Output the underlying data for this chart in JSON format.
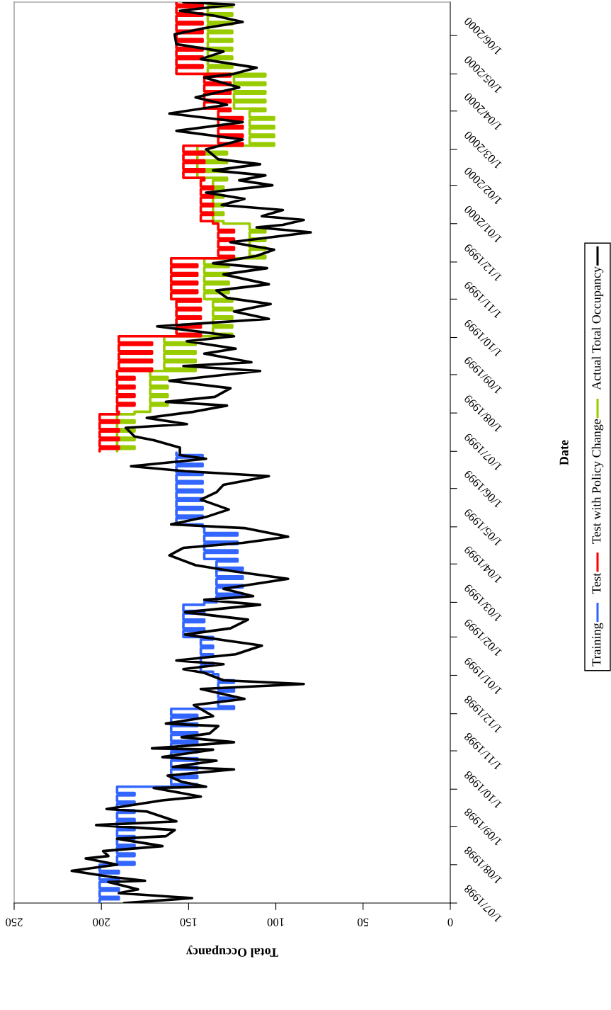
{
  "chart_data": {
    "type": "line",
    "orientation": "horizontal",
    "xlabel": "Total Occupancy",
    "ylabel": "Date",
    "ylim": [
      "1998-07-01",
      "2000-06-28"
    ],
    "xlim": [
      250,
      0
    ],
    "xticks": [
      250,
      200,
      150,
      100,
      50,
      0
    ],
    "grid": false,
    "legend": "right",
    "yticks": [
      {
        "value": "1998-07-01",
        "label": "1/07/1998"
      },
      {
        "value": "1998-08-01",
        "label": "1/08/1998"
      },
      {
        "value": "1998-09-01",
        "label": "1/09/1998"
      },
      {
        "value": "1998-10-01",
        "label": "1/10/1998"
      },
      {
        "value": "1998-11-01",
        "label": "1/11/1998"
      },
      {
        "value": "1998-12-01",
        "label": "1/12/1998"
      },
      {
        "value": "1999-01-01",
        "label": "1/01/1999"
      },
      {
        "value": "1999-02-01",
        "label": "1/02/1999"
      },
      {
        "value": "1999-03-01",
        "label": "1/03/1999"
      },
      {
        "value": "1999-04-01",
        "label": "1/04/1999"
      },
      {
        "value": "1999-05-01",
        "label": "1/05/1999"
      },
      {
        "value": "1999-06-01",
        "label": "1/06/1999"
      },
      {
        "value": "1999-07-01",
        "label": "1/07/1999"
      },
      {
        "value": "1999-08-01",
        "label": "1/08/1999"
      },
      {
        "value": "1999-09-01",
        "label": "1/09/1999"
      },
      {
        "value": "1999-10-01",
        "label": "1/10/1999"
      },
      {
        "value": "1999-11-01",
        "label": "1/11/1999"
      },
      {
        "value": "1999-12-01",
        "label": "1/12/1999"
      },
      {
        "value": "2000-01-01",
        "label": "1/01/2000"
      },
      {
        "value": "2000-02-01",
        "label": "1/02/2000"
      },
      {
        "value": "2000-03-01",
        "label": "1/03/2000"
      },
      {
        "value": "2000-04-01",
        "label": "1/04/2000"
      },
      {
        "value": "2000-05-01",
        "label": "1/05/2000"
      },
      {
        "value": "2000-06-01",
        "label": "1/06/2000"
      }
    ],
    "series": [
      {
        "name": "Training",
        "color": "#3366ff",
        "type": "step",
        "x": [
          "1998-07-01",
          "1998-07-04",
          "1998-07-06",
          "1998-07-11",
          "1998-07-13",
          "1998-07-18",
          "1998-07-20",
          "1998-07-25",
          "1998-07-27",
          "1998-08-01",
          "1998-08-03",
          "1998-08-08",
          "1998-08-10",
          "1998-08-15",
          "1998-08-17",
          "1998-08-22",
          "1998-08-24",
          "1998-08-29",
          "1998-08-31",
          "1998-09-05",
          "1998-09-07",
          "1998-09-12",
          "1998-09-14",
          "1998-09-19",
          "1998-09-21",
          "1998-09-26",
          "1998-09-28",
          "1998-10-03",
          "1998-10-05",
          "1998-10-10",
          "1998-10-12",
          "1998-10-17",
          "1998-10-19",
          "1998-10-24",
          "1998-10-26",
          "1998-10-31",
          "1998-11-02",
          "1998-11-07",
          "1998-11-09",
          "1998-11-14",
          "1998-11-16",
          "1998-11-21",
          "1998-11-23",
          "1998-11-28",
          "1998-11-30",
          "1998-12-05",
          "1998-12-07",
          "1998-12-12",
          "1998-12-14",
          "1998-12-19",
          "1998-12-21",
          "1998-12-26",
          "1998-12-28",
          "1999-01-02",
          "1999-01-04",
          "1999-01-09",
          "1999-01-11",
          "1999-01-16",
          "1999-01-18",
          "1999-01-23",
          "1999-01-25",
          "1999-01-30",
          "1999-02-01",
          "1999-02-06",
          "1999-02-08",
          "1999-02-13",
          "1999-02-15",
          "1999-02-20",
          "1999-02-22",
          "1999-02-27",
          "1999-03-01",
          "1999-03-06",
          "1999-03-08",
          "1999-03-13",
          "1999-03-15",
          "1999-03-20",
          "1999-03-22",
          "1999-03-27",
          "1999-03-29",
          "1999-04-03",
          "1999-04-05",
          "1999-04-10",
          "1999-04-12",
          "1999-04-17",
          "1999-04-19",
          "1999-04-24",
          "1999-04-26",
          "1999-05-01",
          "1999-05-03",
          "1999-05-08",
          "1999-05-10",
          "1999-05-15",
          "1999-05-17",
          "1999-05-22",
          "1999-05-24",
          "1999-05-29",
          "1999-05-31",
          "1999-06-05",
          "1999-06-07",
          "1999-06-12",
          "1999-06-14",
          "1999-06-19",
          "1999-06-21",
          "1999-06-26",
          "1999-06-28",
          "1999-06-30"
        ],
        "values": [
          201,
          190,
          201,
          190,
          201,
          190,
          201,
          190,
          201,
          181,
          191,
          181,
          191,
          181,
          191,
          181,
          191,
          181,
          191,
          181,
          191,
          181,
          191,
          181,
          191,
          181,
          191,
          145,
          160,
          145,
          160,
          145,
          160,
          145,
          160,
          145,
          160,
          145,
          160,
          145,
          160,
          145,
          160,
          145,
          160,
          124,
          133,
          124,
          133,
          124,
          133,
          124,
          133,
          136,
          143,
          136,
          143,
          136,
          143,
          136,
          143,
          136,
          153,
          141,
          153,
          141,
          153,
          141,
          153,
          141,
          134,
          119,
          134,
          119,
          134,
          119,
          134,
          119,
          134,
          122,
          141,
          122,
          141,
          122,
          141,
          122,
          141,
          142,
          157,
          142,
          157,
          142,
          157,
          142,
          157,
          142,
          157,
          142,
          157,
          142,
          157,
          142,
          157,
          142,
          157,
          157
        ]
      },
      {
        "name": "Test",
        "color": "#ff0000",
        "type": "step",
        "x": [
          "1999-07-01",
          "1999-07-03",
          "1999-07-05",
          "1999-07-10",
          "1999-07-12",
          "1999-07-17",
          "1999-07-19",
          "1999-07-24",
          "1999-07-26",
          "1999-07-31",
          "1999-08-02",
          "1999-08-07",
          "1999-08-09",
          "1999-08-14",
          "1999-08-16",
          "1999-08-21",
          "1999-08-23",
          "1999-08-28",
          "1999-08-30",
          "1999-09-04",
          "1999-09-06",
          "1999-09-11",
          "1999-09-13",
          "1999-09-18",
          "1999-09-20",
          "1999-09-25",
          "1999-09-27",
          "1999-10-02",
          "1999-10-04",
          "1999-10-09",
          "1999-10-11",
          "1999-10-16",
          "1999-10-18",
          "1999-10-23",
          "1999-10-25",
          "1999-10-30",
          "1999-11-01",
          "1999-11-06",
          "1999-11-08",
          "1999-11-13",
          "1999-11-15",
          "1999-11-20",
          "1999-11-22",
          "1999-11-27",
          "1999-11-29",
          "1999-12-04",
          "1999-12-06",
          "1999-12-11",
          "1999-12-13",
          "1999-12-18",
          "1999-12-20",
          "1999-12-25",
          "1999-12-27",
          "2000-01-01",
          "2000-01-03",
          "2000-01-08",
          "2000-01-10",
          "2000-01-15",
          "2000-01-17",
          "2000-01-22",
          "2000-01-24",
          "2000-01-29",
          "2000-01-31",
          "2000-02-05",
          "2000-02-07",
          "2000-02-12",
          "2000-02-14",
          "2000-02-19",
          "2000-02-21",
          "2000-02-26",
          "2000-02-28",
          "2000-03-04",
          "2000-03-06",
          "2000-03-11",
          "2000-03-13",
          "2000-03-18",
          "2000-03-20",
          "2000-03-25",
          "2000-03-27",
          "2000-04-01",
          "2000-04-03",
          "2000-04-08",
          "2000-04-10",
          "2000-04-15",
          "2000-04-17",
          "2000-04-22",
          "2000-04-24",
          "2000-04-29",
          "2000-05-01",
          "2000-05-06",
          "2000-05-08",
          "2000-05-13",
          "2000-05-15",
          "2000-05-20",
          "2000-05-22",
          "2000-05-27",
          "2000-05-29",
          "2000-06-03",
          "2000-06-05",
          "2000-06-10",
          "2000-06-12",
          "2000-06-17",
          "2000-06-19",
          "2000-06-24",
          "2000-06-26",
          "2000-06-28"
        ],
        "values": [
          201,
          190,
          201,
          190,
          201,
          190,
          201,
          190,
          201,
          190,
          191,
          181,
          191,
          181,
          191,
          181,
          191,
          181,
          191,
          171,
          190,
          171,
          190,
          171,
          190,
          171,
          190,
          143,
          157,
          143,
          157,
          143,
          157,
          143,
          157,
          143,
          160,
          145,
          160,
          145,
          160,
          145,
          160,
          145,
          160,
          124,
          133,
          124,
          133,
          124,
          133,
          124,
          133,
          136,
          143,
          136,
          143,
          136,
          143,
          136,
          143,
          136,
          143,
          141,
          153,
          141,
          153,
          141,
          153,
          141,
          153,
          119,
          133,
          119,
          133,
          119,
          133,
          119,
          133,
          126,
          141,
          126,
          141,
          126,
          141,
          126,
          141,
          126,
          157,
          142,
          157,
          142,
          157,
          142,
          157,
          142,
          157,
          142,
          157,
          142,
          157,
          142,
          157,
          142,
          157,
          157
        ]
      },
      {
        "name": "Test with Policy Change",
        "color": "#99cc00",
        "type": "step",
        "x": [
          "1999-07-01",
          "1999-07-03",
          "1999-07-05",
          "1999-07-10",
          "1999-07-12",
          "1999-07-17",
          "1999-07-19",
          "1999-07-24",
          "1999-07-26",
          "1999-07-31",
          "1999-08-02",
          "1999-08-07",
          "1999-08-09",
          "1999-08-14",
          "1999-08-16",
          "1999-08-21",
          "1999-08-23",
          "1999-08-28",
          "1999-08-30",
          "1999-09-04",
          "1999-09-06",
          "1999-09-11",
          "1999-09-13",
          "1999-09-18",
          "1999-09-20",
          "1999-09-25",
          "1999-09-27",
          "1999-10-02",
          "1999-10-04",
          "1999-10-09",
          "1999-10-11",
          "1999-10-16",
          "1999-10-18",
          "1999-10-23",
          "1999-10-25",
          "1999-10-30",
          "1999-11-01",
          "1999-11-06",
          "1999-11-08",
          "1999-11-13",
          "1999-11-15",
          "1999-11-20",
          "1999-11-22",
          "1999-11-27",
          "1999-11-29",
          "1999-12-04",
          "1999-12-06",
          "1999-12-11",
          "1999-12-13",
          "1999-12-18",
          "1999-12-20",
          "1999-12-25",
          "1999-12-27",
          "2000-01-01",
          "2000-01-03",
          "2000-01-08",
          "2000-01-10",
          "2000-01-15",
          "2000-01-17",
          "2000-01-22",
          "2000-01-24",
          "2000-01-29",
          "2000-01-31",
          "2000-02-05",
          "2000-02-07",
          "2000-02-12",
          "2000-02-14",
          "2000-02-19",
          "2000-02-21",
          "2000-02-26",
          "2000-02-28",
          "2000-03-04",
          "2000-03-06",
          "2000-03-11",
          "2000-03-13",
          "2000-03-18",
          "2000-03-20",
          "2000-03-25",
          "2000-03-27",
          "2000-04-01",
          "2000-04-03",
          "2000-04-08",
          "2000-04-10",
          "2000-04-15",
          "2000-04-17",
          "2000-04-22",
          "2000-04-24",
          "2000-04-29",
          "2000-05-01",
          "2000-05-06",
          "2000-05-08",
          "2000-05-13",
          "2000-05-15",
          "2000-05-20",
          "2000-05-22",
          "2000-05-27",
          "2000-05-29",
          "2000-06-03",
          "2000-06-05",
          "2000-06-10",
          "2000-06-12",
          "2000-06-17",
          "2000-06-19",
          "2000-06-24",
          "2000-06-26",
          "2000-06-28"
        ],
        "values": [
          191,
          181,
          191,
          181,
          191,
          181,
          191,
          181,
          191,
          181,
          172,
          162,
          172,
          162,
          172,
          162,
          172,
          162,
          172,
          146,
          164,
          146,
          164,
          146,
          164,
          146,
          164,
          125,
          136,
          125,
          136,
          125,
          136,
          125,
          136,
          125,
          141,
          127,
          141,
          127,
          141,
          127,
          141,
          127,
          141,
          106,
          115,
          106,
          115,
          106,
          115,
          106,
          115,
          130,
          136,
          130,
          136,
          130,
          136,
          130,
          136,
          130,
          136,
          128,
          145,
          128,
          145,
          128,
          145,
          128,
          145,
          101,
          115,
          101,
          115,
          101,
          115,
          101,
          115,
          106,
          124,
          106,
          124,
          106,
          124,
          106,
          124,
          106,
          139,
          125,
          139,
          125,
          139,
          125,
          139,
          125,
          139,
          125,
          139,
          125,
          139,
          125,
          139,
          125,
          139,
          139
        ]
      },
      {
        "name": "Actual Total Occupancy",
        "color": "#000000",
        "x": [
          "1998-07-01",
          "1998-07-05",
          "1998-07-09",
          "1998-07-12",
          "1998-07-18",
          "1998-07-19",
          "1998-07-22",
          "1998-07-27",
          "1998-08-01",
          "1998-08-06",
          "1998-08-08",
          "1998-08-12",
          "1998-08-16",
          "1998-08-22",
          "1998-08-24",
          "1998-08-29",
          "1998-09-02",
          "1998-09-05",
          "1998-09-13",
          "1998-09-15",
          "1998-09-22",
          "1998-09-25",
          "1998-10-02",
          "1998-10-03",
          "1998-10-07",
          "1998-10-12",
          "1998-10-17",
          "1998-10-19",
          "1998-10-24",
          "1998-10-27",
          "1998-11-02",
          "1998-11-03",
          "1998-11-08",
          "1998-11-12",
          "1998-11-15",
          "1998-11-21",
          "1998-11-23",
          "1998-11-29",
          "1998-12-08",
          "1998-12-13",
          "1998-12-21",
          "1998-12-25",
          "1998-12-28",
          "1999-01-03",
          "1999-01-06",
          "1999-01-10",
          "1999-01-13",
          "1999-01-18",
          "1999-01-25",
          "1999-01-29",
          "1999-02-03",
          "1999-02-08",
          "1999-02-15",
          "1999-02-21",
          "1999-02-27",
          "1999-03-03",
          "1999-03-06",
          "1999-03-12",
          "1999-03-20",
          "1999-03-26",
          "1999-03-31",
          "1999-04-08",
          "1999-04-14",
          "1999-04-18",
          "1999-04-23",
          "1999-04-30",
          "1999-05-03",
          "1999-05-09",
          "1999-05-15",
          "1999-05-23",
          "1999-05-29",
          "1999-06-04",
          "1999-06-11",
          "1999-06-15",
          "1999-06-19",
          "1999-06-25",
          "1999-06-28",
          "1999-07-04",
          "1999-07-10",
          "1999-07-13",
          "1999-07-20",
          "1999-07-23",
          "1999-07-28",
          "1999-08-02",
          "1999-08-07",
          "1999-08-10",
          "1999-08-14",
          "1999-08-21",
          "1999-08-27",
          "1999-09-04",
          "1999-09-08",
          "1999-09-11",
          "1999-09-18",
          "1999-09-22",
          "1999-09-28",
          "1999-10-02",
          "1999-10-05",
          "1999-10-10",
          "1999-10-16",
          "1999-10-22",
          "1999-10-28",
          "1999-11-02",
          "1999-11-08",
          "1999-11-13",
          "1999-11-21",
          "1999-11-26",
          "1999-11-30",
          "1999-12-06",
          "1999-12-11",
          "1999-12-17",
          "1999-12-25",
          "1999-12-29",
          "1999-12-31",
          "2000-01-04",
          "2000-01-07",
          "2000-01-12",
          "2000-01-16",
          "2000-01-21",
          "2000-01-26",
          "2000-02-01",
          "2000-02-05",
          "2000-02-09",
          "2000-02-13",
          "2000-02-18",
          "2000-02-22",
          "2000-03-01",
          "2000-03-09",
          "2000-03-16",
          "2000-03-23",
          "2000-03-30",
          "2000-04-06",
          "2000-04-12",
          "2000-04-20",
          "2000-04-28",
          "2000-05-01",
          "2000-05-06",
          "2000-05-13",
          "2000-05-19",
          "2000-05-25",
          "2000-06-02",
          "2000-06-07",
          "2000-06-12",
          "2000-06-17",
          "2000-06-21",
          "2000-06-26",
          "2000-06-28"
        ],
        "values": [
          187,
          148,
          190,
          179,
          196,
          175,
          194,
          217,
          191,
          209,
          196,
          199,
          165,
          191,
          163,
          158,
          203,
          157,
          174,
          197,
          165,
          143,
          170,
          140,
          154,
          162,
          124,
          159,
          134,
          165,
          136,
          171,
          124,
          154,
          138,
          133,
          163,
          136,
          147,
          118,
          143,
          84,
          130,
          141,
          153,
          130,
          157,
          123,
          108,
          128,
          152,
          126,
          116,
          152,
          109,
          141,
          113,
          130,
          93,
          124,
          146,
          161,
          153,
          119,
          93,
          118,
          160,
          140,
          127,
          143,
          134,
          130,
          104,
          152,
          183,
          140,
          155,
          155,
          170,
          181,
          186,
          151,
          174,
          147,
          128,
          163,
          135,
          126,
          161,
          109,
          153,
          114,
          141,
          123,
          151,
          124,
          140,
          168,
          104,
          124,
          103,
          128,
          134,
          104,
          130,
          105,
          136,
          111,
          101,
          126,
          80,
          111,
          96,
          84,
          108,
          96,
          131,
          118,
          140,
          102,
          121,
          106,
          136,
          109,
          133,
          140,
          119,
          157,
          119,
          161,
          128,
          146,
          121,
          141,
          124,
          111,
          143,
          130,
          157,
          158,
          141,
          119,
          135,
          155,
          124,
          153
        ]
      }
    ]
  }
}
